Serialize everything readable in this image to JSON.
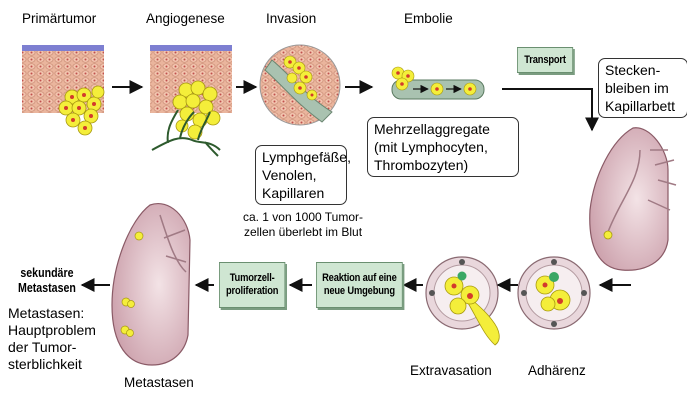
{
  "stages": {
    "primaertumor": "Primärtumor",
    "angiogenese": "Angiogenese",
    "invasion": "Invasion",
    "embolie": "Embolie",
    "extravasation": "Extravasation",
    "adhaerenz": "Adhärenz",
    "metastasen": "Metastasen"
  },
  "boxes": {
    "invasion_vessels": [
      "Lymphgefäße,",
      "Venolen,",
      "Kapillaren"
    ],
    "embolie_aggregates": [
      "Mehrzellaggregate",
      "(mit Lymphocyten,",
      "Thrombozyten)"
    ],
    "capillary": [
      "Stecken-",
      "bleiben im",
      "Kapillarbett"
    ]
  },
  "process_boxes": {
    "transport": "Transport",
    "reaction": [
      "Reaktion auf eine",
      "neue Umgebung"
    ],
    "proliferation": [
      "Tumorzell-",
      "proliferation"
    ]
  },
  "survival_note": [
    "ca. 1 von 1000 Tumor-",
    "zellen überlebt im Blut"
  ],
  "secondary": {
    "title": [
      "sekundäre",
      "Metastasen"
    ],
    "caption": [
      "Metastasen:",
      "Hauptproblem",
      "der Tumor-",
      "sterblichkeit"
    ]
  },
  "colors": {
    "tissue": "#e9b39b",
    "tumor_cell": "#f4ee3a",
    "nucleus": "#d33b2b",
    "vessel": "#9db6a4",
    "lung": "#d7b4bd",
    "process_box": "#cfe6d2"
  }
}
